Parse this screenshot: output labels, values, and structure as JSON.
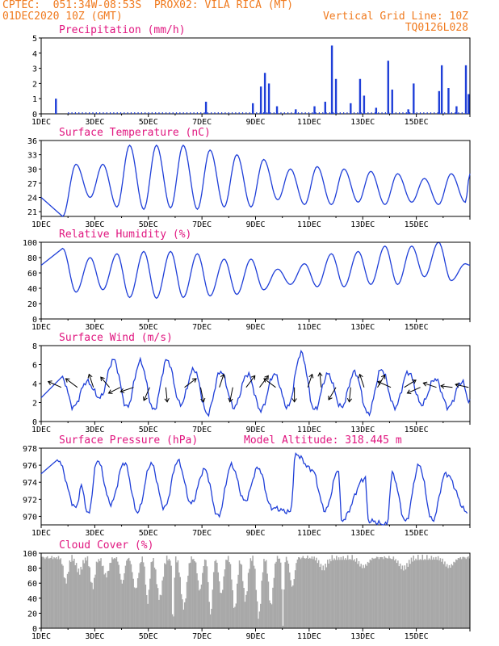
{
  "header": {
    "line1": "CPTEC:  051:34W-08:53S  PROX02: VILA RICA (MT)",
    "line2_left": "01DEC2020 10Z (GMT)",
    "line2_right": "Vertical Grid Line: 10Z",
    "line3_right": "TQ0126L028"
  },
  "colors": {
    "header": "#f07a1e",
    "panel_title": "#e0157f",
    "series": "#1f3fd8",
    "cloud": "#a8a8a8"
  },
  "chart_data": [
    {
      "id": "precip",
      "type": "bar",
      "title": "Precipitation (mm/h)",
      "ylim": [
        0,
        5
      ],
      "yticks": [
        0,
        1,
        2,
        3,
        4,
        5
      ],
      "xlabels": [
        "1DEC",
        "3DEC",
        "5DEC",
        "7DEC",
        "9DEC",
        "11DEC",
        "13DEC",
        "15DEC"
      ],
      "events": [
        {
          "day": 0.55,
          "v": 1.0
        },
        {
          "day": 6.15,
          "v": 0.8
        },
        {
          "day": 7.9,
          "v": 0.7
        },
        {
          "day": 8.2,
          "v": 1.8
        },
        {
          "day": 8.35,
          "v": 2.7
        },
        {
          "day": 8.5,
          "v": 2.0
        },
        {
          "day": 8.8,
          "v": 0.5
        },
        {
          "day": 9.5,
          "v": 0.3
        },
        {
          "day": 10.2,
          "v": 0.5
        },
        {
          "day": 10.6,
          "v": 0.8
        },
        {
          "day": 10.85,
          "v": 4.5
        },
        {
          "day": 11.0,
          "v": 2.3
        },
        {
          "day": 11.55,
          "v": 0.7
        },
        {
          "day": 11.9,
          "v": 2.3
        },
        {
          "day": 12.05,
          "v": 1.2
        },
        {
          "day": 12.5,
          "v": 0.4
        },
        {
          "day": 12.95,
          "v": 3.5
        },
        {
          "day": 13.1,
          "v": 1.6
        },
        {
          "day": 13.7,
          "v": 0.3
        },
        {
          "day": 13.9,
          "v": 2.0
        },
        {
          "day": 14.85,
          "v": 1.5
        },
        {
          "day": 14.95,
          "v": 3.2
        },
        {
          "day": 15.2,
          "v": 1.7
        },
        {
          "day": 15.5,
          "v": 0.5
        },
        {
          "day": 15.85,
          "v": 3.2
        },
        {
          "day": 15.95,
          "v": 1.3
        }
      ]
    },
    {
      "id": "temp",
      "type": "line",
      "title": "Surface Temperature (nC)",
      "ylim": [
        20,
        36
      ],
      "yticks": [
        21,
        24,
        27,
        30,
        33,
        36
      ],
      "xlabels": [
        "1DEC",
        "3DEC",
        "5DEC",
        "7DEC",
        "9DEC",
        "11DEC",
        "13DEC",
        "15DEC"
      ],
      "min": [
        [
          0.8,
          20
        ],
        [
          1.83,
          24
        ],
        [
          2.83,
          22
        ],
        [
          3.83,
          21.5
        ],
        [
          4.83,
          21.8
        ],
        [
          5.83,
          21.5
        ],
        [
          6.83,
          22
        ],
        [
          7.83,
          22
        ],
        [
          8.83,
          23.5
        ],
        [
          9.83,
          22.5
        ],
        [
          10.83,
          22.5
        ],
        [
          11.83,
          23
        ],
        [
          12.83,
          22.5
        ],
        [
          13.83,
          23
        ],
        [
          14.83,
          22.5
        ],
        [
          15.83,
          23
        ]
      ],
      "max": [
        [
          1.3,
          31
        ],
        [
          2.3,
          31
        ],
        [
          3.3,
          35
        ],
        [
          4.3,
          35
        ],
        [
          5.3,
          35
        ],
        [
          6.3,
          34
        ],
        [
          7.3,
          33
        ],
        [
          8.3,
          32
        ],
        [
          9.3,
          30
        ],
        [
          10.3,
          30.5
        ],
        [
          11.3,
          30
        ],
        [
          12.3,
          29.5
        ],
        [
          13.3,
          29
        ],
        [
          14.3,
          28
        ],
        [
          15.3,
          29
        ],
        [
          16.0,
          29
        ]
      ]
    },
    {
      "id": "rh",
      "type": "line",
      "title": "Relative Humidity (%)",
      "ylim": [
        0,
        100
      ],
      "yticks": [
        0,
        20,
        40,
        60,
        80,
        100
      ],
      "xlabels": [
        "1DEC",
        "3DEC",
        "5DEC",
        "7DEC",
        "9DEC",
        "11DEC",
        "13DEC",
        "15DEC"
      ],
      "max": [
        [
          0.8,
          92
        ],
        [
          1.83,
          80
        ],
        [
          2.83,
          85
        ],
        [
          3.83,
          88
        ],
        [
          4.83,
          88
        ],
        [
          5.83,
          85
        ],
        [
          6.83,
          78
        ],
        [
          7.83,
          78
        ],
        [
          8.83,
          65
        ],
        [
          9.83,
          72
        ],
        [
          10.83,
          85
        ],
        [
          11.83,
          88
        ],
        [
          12.83,
          95
        ],
        [
          13.83,
          95
        ],
        [
          14.83,
          100
        ],
        [
          15.83,
          72
        ]
      ],
      "min": [
        [
          1.3,
          35
        ],
        [
          2.3,
          38
        ],
        [
          3.3,
          28
        ],
        [
          4.3,
          27
        ],
        [
          5.3,
          28
        ],
        [
          6.3,
          30
        ],
        [
          7.3,
          32
        ],
        [
          8.3,
          38
        ],
        [
          9.3,
          45
        ],
        [
          10.3,
          42
        ],
        [
          11.3,
          42
        ],
        [
          12.3,
          45
        ],
        [
          13.3,
          45
        ],
        [
          14.3,
          55
        ],
        [
          15.3,
          50
        ],
        [
          16.0,
          70
        ]
      ]
    },
    {
      "id": "wind",
      "type": "line",
      "title": "Surface Wind (m/s)",
      "ylim": [
        0,
        8
      ],
      "yticks": [
        0,
        2,
        4,
        6,
        8
      ],
      "xlabels": [
        "1DEC",
        "3DEC",
        "5DEC",
        "7DEC",
        "9DEC",
        "11DEC",
        "13DEC",
        "15DEC"
      ],
      "max": [
        [
          0.8,
          4.5
        ],
        [
          1.7,
          4.2
        ],
        [
          2.7,
          6.5
        ],
        [
          3.7,
          6.3
        ],
        [
          4.7,
          6.5
        ],
        [
          5.7,
          5.5
        ],
        [
          6.7,
          5.3
        ],
        [
          7.7,
          5.0
        ],
        [
          8.7,
          5.0
        ],
        [
          9.7,
          7.2
        ],
        [
          10.7,
          5.0
        ],
        [
          11.7,
          5.2
        ],
        [
          12.7,
          5.5
        ],
        [
          13.7,
          5.2
        ],
        [
          14.7,
          4.5
        ],
        [
          15.7,
          4.2
        ]
      ],
      "min": [
        [
          1.2,
          1.5
        ],
        [
          2.2,
          2.5
        ],
        [
          3.2,
          1.5
        ],
        [
          4.2,
          1.2
        ],
        [
          5.2,
          1.8
        ],
        [
          6.2,
          0.8
        ],
        [
          7.2,
          1.5
        ],
        [
          8.2,
          1.2
        ],
        [
          9.2,
          1.5
        ],
        [
          10.2,
          1.2
        ],
        [
          11.2,
          1.5
        ],
        [
          12.2,
          0.8
        ],
        [
          13.2,
          1.5
        ],
        [
          14.2,
          1.8
        ],
        [
          15.2,
          1.5
        ],
        [
          16.0,
          2.0
        ]
      ],
      "vectors": [
        {
          "day": 0.75,
          "u": -0.9,
          "v": 0.4
        },
        {
          "day": 1.35,
          "u": -0.8,
          "v": 0.6
        },
        {
          "day": 1.95,
          "u": -0.3,
          "v": 0.9
        },
        {
          "day": 2.55,
          "u": -0.6,
          "v": 0.7
        },
        {
          "day": 2.95,
          "u": -0.8,
          "v": -0.4
        },
        {
          "day": 3.45,
          "u": -0.9,
          "v": -0.3
        },
        {
          "day": 4.05,
          "u": -0.4,
          "v": -0.9
        },
        {
          "day": 4.65,
          "u": 0.1,
          "v": -1.0
        },
        {
          "day": 5.35,
          "u": 0.8,
          "v": 0.6
        },
        {
          "day": 5.95,
          "u": 0.2,
          "v": -1.0
        },
        {
          "day": 6.65,
          "u": 0.3,
          "v": 0.9
        },
        {
          "day": 7.15,
          "u": -0.2,
          "v": -1.0
        },
        {
          "day": 7.65,
          "u": 0.6,
          "v": 0.8
        },
        {
          "day": 8.15,
          "u": 0.6,
          "v": 0.8
        },
        {
          "day": 8.75,
          "u": -0.8,
          "v": 0.6
        },
        {
          "day": 9.45,
          "u": 0.0,
          "v": -1.0
        },
        {
          "day": 9.95,
          "u": 0.3,
          "v": 0.9
        },
        {
          "day": 10.45,
          "u": -0.1,
          "v": 1.0
        },
        {
          "day": 11.0,
          "u": -0.5,
          "v": -0.85
        },
        {
          "day": 11.55,
          "u": -0.1,
          "v": -1.0
        },
        {
          "day": 12.05,
          "u": -0.3,
          "v": 0.9
        },
        {
          "day": 12.55,
          "u": 0.5,
          "v": 0.85
        },
        {
          "day": 13.05,
          "u": -0.9,
          "v": 0.4
        },
        {
          "day": 13.55,
          "u": 0.8,
          "v": 0.5
        },
        {
          "day": 14.15,
          "u": -0.9,
          "v": -0.4
        },
        {
          "day": 14.75,
          "u": -0.9,
          "v": 0.3
        },
        {
          "day": 15.35,
          "u": -0.8,
          "v": 0.1
        },
        {
          "day": 15.95,
          "u": -0.9,
          "v": 0.2
        }
      ]
    },
    {
      "id": "pressure",
      "type": "line",
      "title": "Surface Pressure (hPa)",
      "subtitle": "Model Altitude: 318.445 m",
      "ylim": [
        969,
        978
      ],
      "yticks": [
        970,
        972,
        974,
        976,
        978
      ],
      "xlabels": [
        "1DEC",
        "3DEC",
        "5DEC",
        "7DEC",
        "9DEC",
        "11DEC",
        "13DEC",
        "15DEC"
      ],
      "max": [
        [
          0.6,
          976.7
        ],
        [
          1.5,
          973.5
        ],
        [
          2.1,
          976.6
        ],
        [
          3.1,
          976.3
        ],
        [
          4.1,
          976.2
        ],
        [
          5.1,
          976.5
        ],
        [
          6.1,
          975.5
        ],
        [
          7.1,
          976.0
        ],
        [
          8.1,
          975.7
        ],
        [
          9.5,
          977.3
        ],
        [
          10.1,
          975.5
        ],
        [
          11.1,
          975.5
        ],
        [
          12.1,
          974.5
        ],
        [
          13.1,
          975.0
        ],
        [
          14.1,
          976.0
        ],
        [
          15.1,
          975.0
        ]
      ],
      "min": [
        [
          1.3,
          971.0
        ],
        [
          1.75,
          970.2
        ],
        [
          2.6,
          971.5
        ],
        [
          3.6,
          970.5
        ],
        [
          4.6,
          971.0
        ],
        [
          5.6,
          971.5
        ],
        [
          6.6,
          970.0
        ],
        [
          7.6,
          971.8
        ],
        [
          8.6,
          971.0
        ],
        [
          9.3,
          970.5
        ],
        [
          10.6,
          970.7
        ],
        [
          11.2,
          969.5
        ],
        [
          12.2,
          969.5
        ],
        [
          12.9,
          969.0
        ],
        [
          13.6,
          969.4
        ],
        [
          14.6,
          969.5
        ],
        [
          15.9,
          970.5
        ]
      ]
    },
    {
      "id": "cloud",
      "type": "bar",
      "title": "Cloud Cover (%)",
      "ylim": [
        0,
        100
      ],
      "yticks": [
        0,
        20,
        40,
        60,
        80,
        100
      ],
      "xlabels": [
        "1DEC",
        "3DEC",
        "5DEC",
        "7DEC",
        "9DEC",
        "11DEC",
        "13DEC",
        "15DEC"
      ],
      "baseline_pct": 95,
      "dips": [
        {
          "day": 0.9,
          "v": 62,
          "w": 0.12
        },
        {
          "day": 1.4,
          "v": 75,
          "w": 0.15
        },
        {
          "day": 1.9,
          "v": 55,
          "w": 0.12
        },
        {
          "day": 2.4,
          "v": 70,
          "w": 0.15
        },
        {
          "day": 3.0,
          "v": 60,
          "w": 0.12
        },
        {
          "day": 3.5,
          "v": 52,
          "w": 0.14
        },
        {
          "day": 3.95,
          "v": 35,
          "w": 0.1
        },
        {
          "day": 4.4,
          "v": 40,
          "w": 0.15
        },
        {
          "day": 4.9,
          "v": 2,
          "w": 0.05
        },
        {
          "day": 5.3,
          "v": 28,
          "w": 0.15
        },
        {
          "day": 5.9,
          "v": 50,
          "w": 0.12
        },
        {
          "day": 6.3,
          "v": 18,
          "w": 0.1
        },
        {
          "day": 6.7,
          "v": 45,
          "w": 0.12
        },
        {
          "day": 7.2,
          "v": 25,
          "w": 0.12
        },
        {
          "day": 7.6,
          "v": 38,
          "w": 0.12
        },
        {
          "day": 8.1,
          "v": 15,
          "w": 0.12
        },
        {
          "day": 8.55,
          "v": 30,
          "w": 0.12
        },
        {
          "day": 9.0,
          "v": 5,
          "w": 0.05
        },
        {
          "day": 9.35,
          "v": 55,
          "w": 0.12
        },
        {
          "day": 10.5,
          "v": 80,
          "w": 0.2
        },
        {
          "day": 12.0,
          "v": 82,
          "w": 0.25
        },
        {
          "day": 13.5,
          "v": 80,
          "w": 0.25
        },
        {
          "day": 15.2,
          "v": 82,
          "w": 0.25
        }
      ]
    }
  ]
}
